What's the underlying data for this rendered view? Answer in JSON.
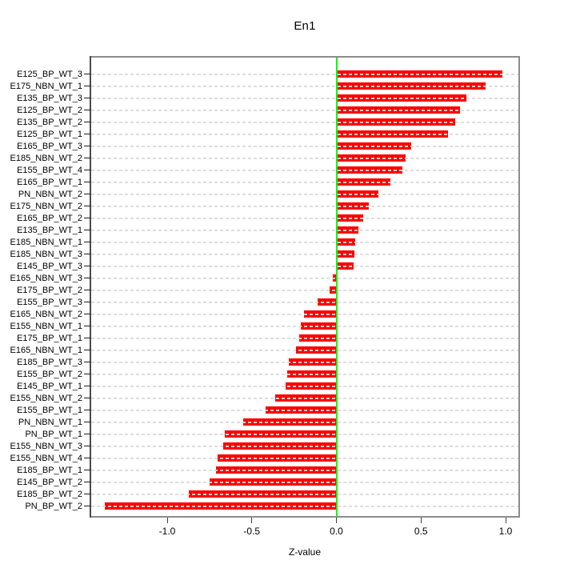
{
  "title": "En1",
  "chart_data": {
    "type": "bar",
    "orientation": "horizontal",
    "title": "En1",
    "xlabel": "Z-value",
    "ylabel": "",
    "legend": "none",
    "grid": "dashed horizontal line per category, full plot width",
    "xlim": [
      -1.45,
      1.08
    ],
    "x_ticks": [
      {
        "label": "-1.0",
        "value": -1.0
      },
      {
        "label": "-0.5",
        "value": -0.5
      },
      {
        "label": "0.0",
        "value": 0.0
      },
      {
        "label": "0.5",
        "value": 0.5
      },
      {
        "label": "1.0",
        "value": 1.0
      }
    ],
    "zero_reference_line": 0.0,
    "categories": [
      "E125_BP_WT_3",
      "E175_NBN_WT_1",
      "E135_BP_WT_3",
      "E125_BP_WT_2",
      "E135_BP_WT_2",
      "E125_BP_WT_1",
      "E165_BP_WT_3",
      "E185_NBN_WT_2",
      "E155_BP_WT_4",
      "E165_BP_WT_1",
      "PN_NBN_WT_2",
      "E175_NBN_WT_2",
      "E165_BP_WT_2",
      "E135_BP_WT_1",
      "E185_NBN_WT_1",
      "E185_NBN_WT_3",
      "E145_BP_WT_3",
      "E165_NBN_WT_3",
      "E175_BP_WT_2",
      "E155_BP_WT_3",
      "E165_NBN_WT_2",
      "E155_NBN_WT_1",
      "E175_BP_WT_1",
      "E165_NBN_WT_1",
      "E185_BP_WT_3",
      "E155_BP_WT_2",
      "E145_BP_WT_1",
      "E155_NBN_WT_2",
      "E155_BP_WT_1",
      "PN_NBN_WT_1",
      "PN_BP_WT_1",
      "E155_NBN_WT_3",
      "E155_NBN_WT_4",
      "E185_BP_WT_1",
      "E145_BP_WT_2",
      "E185_BP_WT_2",
      "PN_BP_WT_2"
    ],
    "values": [
      0.98,
      0.88,
      0.77,
      0.73,
      0.7,
      0.66,
      0.44,
      0.41,
      0.39,
      0.32,
      0.25,
      0.19,
      0.16,
      0.13,
      0.11,
      0.105,
      0.1,
      -0.02,
      -0.04,
      -0.11,
      -0.19,
      -0.21,
      -0.22,
      -0.24,
      -0.28,
      -0.29,
      -0.3,
      -0.36,
      -0.42,
      -0.55,
      -0.66,
      -0.67,
      -0.7,
      -0.71,
      -0.75,
      -0.87,
      -1.37
    ],
    "colors": {
      "bar": "#ff0000",
      "zero_line": "#00ff00",
      "gridline": "#dbdbdb",
      "box_border": "#8c8c8c",
      "axis": "#1a1a1a",
      "text": "#000000",
      "background": "#ffffff"
    }
  }
}
